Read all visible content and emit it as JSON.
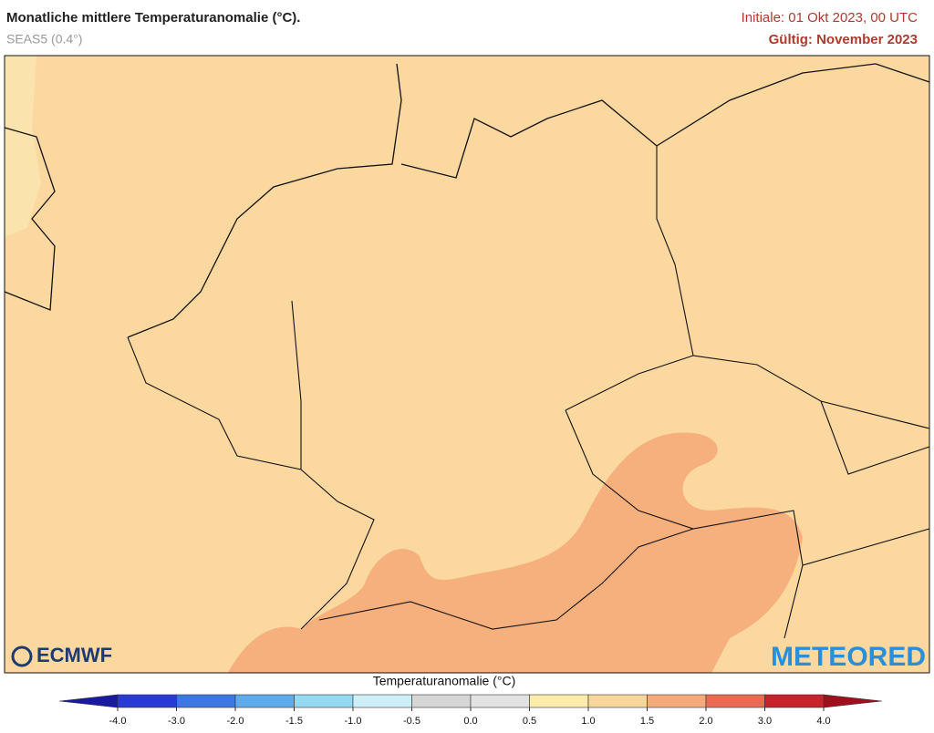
{
  "header": {
    "title": "Monatliche mittlere Temperaturanomalie (°C).",
    "subtitle": "SEAS5 (0.4°)",
    "initial": "Initiale: 01 Okt 2023, 00 UTC",
    "valid": "Gültig: November 2023"
  },
  "logos": {
    "left": "ECMWF",
    "right": "METEORED"
  },
  "colorbar": {
    "title": "Temperaturanomalie (°C)",
    "ticks": [
      {
        "value": -4,
        "label": "-4.0"
      },
      {
        "value": -3,
        "label": "-3.0"
      },
      {
        "value": -2,
        "label": "-2.0"
      },
      {
        "value": -1.5,
        "label": "-1.5"
      },
      {
        "value": -1,
        "label": "-1.0"
      },
      {
        "value": -0.5,
        "label": "-0.5"
      },
      {
        "value": 0,
        "label": "0.0"
      },
      {
        "value": 0.5,
        "label": "0.5"
      },
      {
        "value": 1,
        "label": "1.0"
      },
      {
        "value": 1.5,
        "label": "1.5"
      },
      {
        "value": 2,
        "label": "2.0"
      },
      {
        "value": 3,
        "label": "3.0"
      },
      {
        "value": 4,
        "label": "4.0"
      }
    ],
    "colors": [
      "#2a3ad6",
      "#3c78e2",
      "#5eaaea",
      "#94d8f2",
      "#cdf0f8",
      "#d6d6d6",
      "#e2e2e2",
      "#fbecab",
      "#f8d59b",
      "#f4aa7a",
      "#eb6b52",
      "#c8222c"
    ],
    "under_color": "#1a1aa0",
    "over_color": "#a00f1e"
  }
}
